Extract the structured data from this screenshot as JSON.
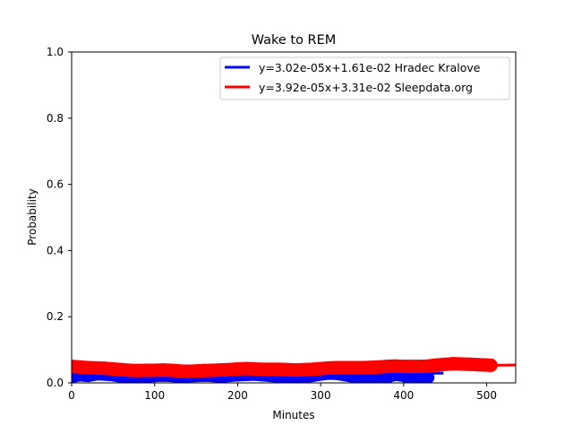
{
  "chart_data": {
    "type": "line",
    "title": "Wake to REM",
    "xlabel": "Minutes",
    "ylabel": "Probability",
    "xlim": [
      0,
      535
    ],
    "ylim": [
      0,
      1
    ],
    "x_ticks": [
      "0",
      "100",
      "200",
      "300",
      "400",
      "500"
    ],
    "y_ticks": [
      "0.0",
      "0.2",
      "0.4",
      "0.6",
      "0.8",
      "1.0"
    ],
    "grid": false,
    "legend_position": "top-right",
    "series": [
      {
        "name": "y=3.02e-05x+1.61e-02 Hradec Kralove",
        "color": "#0000ff",
        "fit": {
          "slope": 3.02e-05,
          "intercept": 0.0161,
          "x_range": [
            0,
            448
          ]
        },
        "points": [
          [
            0,
            0.018
          ],
          [
            10,
            0.022
          ],
          [
            20,
            0.02
          ],
          [
            30,
            0.025
          ],
          [
            40,
            0.024
          ],
          [
            50,
            0.022
          ],
          [
            60,
            0.018
          ],
          [
            70,
            0.016
          ],
          [
            80,
            0.017
          ],
          [
            90,
            0.018
          ],
          [
            100,
            0.02
          ],
          [
            110,
            0.021
          ],
          [
            120,
            0.02
          ],
          [
            130,
            0.017
          ],
          [
            140,
            0.019
          ],
          [
            150,
            0.02
          ],
          [
            160,
            0.021
          ],
          [
            170,
            0.02
          ],
          [
            180,
            0.018
          ],
          [
            190,
            0.02
          ],
          [
            200,
            0.022
          ],
          [
            210,
            0.023
          ],
          [
            220,
            0.024
          ],
          [
            230,
            0.022
          ],
          [
            240,
            0.02
          ],
          [
            250,
            0.018
          ],
          [
            260,
            0.016
          ],
          [
            270,
            0.015
          ],
          [
            280,
            0.017
          ],
          [
            290,
            0.02
          ],
          [
            300,
            0.024
          ],
          [
            310,
            0.027
          ],
          [
            320,
            0.026
          ],
          [
            330,
            0.022
          ],
          [
            340,
            0.018
          ],
          [
            350,
            0.012
          ],
          [
            360,
            0.008
          ],
          [
            370,
            0.01
          ],
          [
            380,
            0.016
          ],
          [
            390,
            0.024
          ],
          [
            400,
            0.02
          ],
          [
            410,
            0.012
          ],
          [
            420,
            0.008
          ],
          [
            430,
            0.016
          ]
        ]
      },
      {
        "name": "y=3.92e-05x+3.31e-02 Sleepdata.org",
        "color": "#ff0000",
        "fit": {
          "slope": 3.92e-05,
          "intercept": 0.0331,
          "x_range": [
            0,
            540
          ]
        },
        "points": [
          [
            0,
            0.05
          ],
          [
            10,
            0.048
          ],
          [
            20,
            0.046
          ],
          [
            30,
            0.045
          ],
          [
            40,
            0.044
          ],
          [
            50,
            0.042
          ],
          [
            60,
            0.04
          ],
          [
            70,
            0.038
          ],
          [
            80,
            0.037
          ],
          [
            90,
            0.038
          ],
          [
            100,
            0.038
          ],
          [
            110,
            0.039
          ],
          [
            120,
            0.038
          ],
          [
            130,
            0.036
          ],
          [
            140,
            0.035
          ],
          [
            150,
            0.036
          ],
          [
            160,
            0.037
          ],
          [
            170,
            0.038
          ],
          [
            180,
            0.039
          ],
          [
            190,
            0.04
          ],
          [
            200,
            0.042
          ],
          [
            210,
            0.043
          ],
          [
            220,
            0.042
          ],
          [
            230,
            0.041
          ],
          [
            240,
            0.041
          ],
          [
            250,
            0.041
          ],
          [
            260,
            0.04
          ],
          [
            270,
            0.039
          ],
          [
            280,
            0.04
          ],
          [
            290,
            0.041
          ],
          [
            300,
            0.043
          ],
          [
            310,
            0.045
          ],
          [
            320,
            0.046
          ],
          [
            330,
            0.046
          ],
          [
            340,
            0.046
          ],
          [
            350,
            0.046
          ],
          [
            360,
            0.047
          ],
          [
            370,
            0.048
          ],
          [
            380,
            0.05
          ],
          [
            390,
            0.051
          ],
          [
            400,
            0.05
          ],
          [
            410,
            0.05
          ],
          [
            420,
            0.05
          ],
          [
            430,
            0.051
          ],
          [
            440,
            0.054
          ],
          [
            450,
            0.056
          ],
          [
            460,
            0.058
          ],
          [
            470,
            0.057
          ],
          [
            480,
            0.056
          ],
          [
            490,
            0.055
          ],
          [
            500,
            0.054
          ],
          [
            505,
            0.053
          ]
        ]
      }
    ]
  }
}
